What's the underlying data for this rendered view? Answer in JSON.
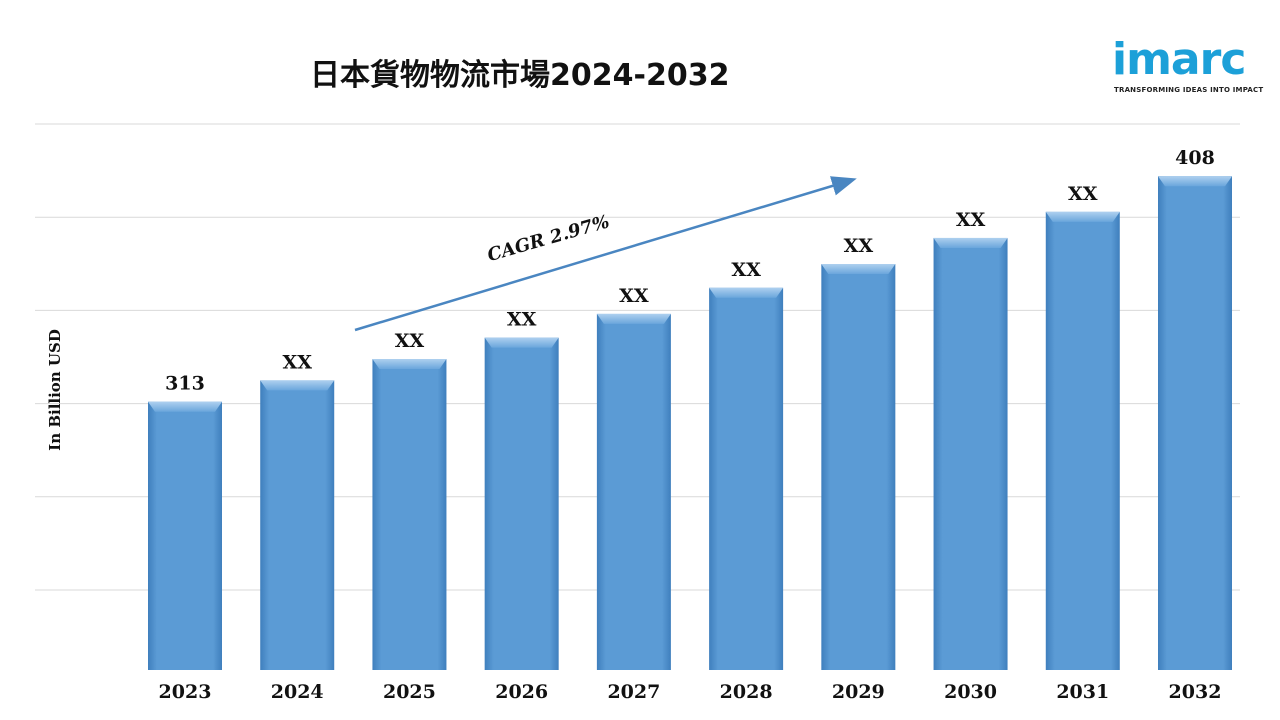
{
  "title": "日本貨物物流市場2024-2032",
  "logo": {
    "word": "imarc",
    "tagline": "TRANSFORMING IDEAS INTO IMPACT",
    "color": "#1ca0d8"
  },
  "chart_data": {
    "type": "bar",
    "title": "日本貨物物流市場2024-2032",
    "ylabel": "In Billion USD",
    "xlabel": "",
    "categories": [
      "2023",
      "2024",
      "2025",
      "2026",
      "2027",
      "2028",
      "2029",
      "2030",
      "2031",
      "2032"
    ],
    "values": [
      313,
      322,
      331,
      340,
      350,
      361,
      371,
      382,
      393,
      408
    ],
    "data_labels": [
      "313",
      "XX",
      "XX",
      "XX",
      "XX",
      "XX",
      "XX",
      "XX",
      "XX",
      "408"
    ],
    "ylim": [
      200,
      430
    ],
    "grid": true,
    "annotation": "CAGR 2.97%",
    "bar_color": "#5b9bd5"
  }
}
